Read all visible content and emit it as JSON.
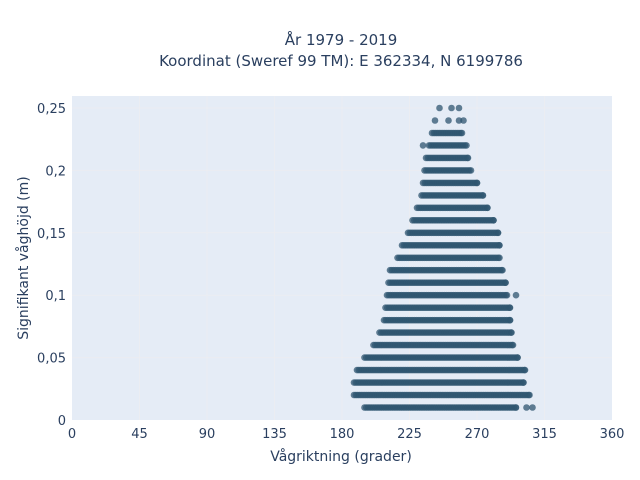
{
  "chart_data": {
    "type": "scatter",
    "title_line1": "År 1979 - 2019",
    "title_line2": "Koordinat (Sweref 99 TM): E 362334, N 6199786",
    "xlabel": "Vågriktning (grader)",
    "ylabel": "Signifikant våghöjd (m)",
    "xlim": [
      0,
      360
    ],
    "ylim": [
      0,
      0.26
    ],
    "x_ticks": [
      0,
      45,
      90,
      135,
      180,
      225,
      270,
      315,
      360
    ],
    "x_tick_labels": [
      "0",
      "45",
      "90",
      "135",
      "180",
      "225",
      "270",
      "315",
      "360"
    ],
    "y_ticks": [
      0,
      0.05,
      0.1,
      0.15,
      0.2,
      0.25
    ],
    "y_tick_labels": [
      "0",
      "0,05",
      "0,1",
      "0,15",
      "0,2",
      "0,25"
    ],
    "grid": true,
    "marker_color": "#2f5670",
    "rows": [
      {
        "y": 0.01,
        "x_min": 195,
        "x_max": 296,
        "extra_x": [
          303,
          307
        ]
      },
      {
        "y": 0.02,
        "x_min": 188,
        "x_max": 305,
        "extra_x": []
      },
      {
        "y": 0.03,
        "x_min": 188,
        "x_max": 301,
        "extra_x": []
      },
      {
        "y": 0.04,
        "x_min": 190,
        "x_max": 302,
        "extra_x": []
      },
      {
        "y": 0.05,
        "x_min": 195,
        "x_max": 297,
        "extra_x": []
      },
      {
        "y": 0.06,
        "x_min": 201,
        "x_max": 294,
        "extra_x": []
      },
      {
        "y": 0.07,
        "x_min": 205,
        "x_max": 293,
        "extra_x": []
      },
      {
        "y": 0.08,
        "x_min": 208,
        "x_max": 292,
        "extra_x": []
      },
      {
        "y": 0.09,
        "x_min": 209,
        "x_max": 292,
        "extra_x": []
      },
      {
        "y": 0.1,
        "x_min": 210,
        "x_max": 290,
        "extra_x": [
          296
        ]
      },
      {
        "y": 0.11,
        "x_min": 211,
        "x_max": 289,
        "extra_x": []
      },
      {
        "y": 0.12,
        "x_min": 212,
        "x_max": 287,
        "extra_x": []
      },
      {
        "y": 0.13,
        "x_min": 217,
        "x_max": 285,
        "extra_x": []
      },
      {
        "y": 0.14,
        "x_min": 220,
        "x_max": 285,
        "extra_x": []
      },
      {
        "y": 0.15,
        "x_min": 224,
        "x_max": 284,
        "extra_x": []
      },
      {
        "y": 0.16,
        "x_min": 227,
        "x_max": 281,
        "extra_x": []
      },
      {
        "y": 0.17,
        "x_min": 230,
        "x_max": 277,
        "extra_x": []
      },
      {
        "y": 0.18,
        "x_min": 233,
        "x_max": 274,
        "extra_x": []
      },
      {
        "y": 0.19,
        "x_min": 234,
        "x_max": 270,
        "extra_x": []
      },
      {
        "y": 0.2,
        "x_min": 235,
        "x_max": 266,
        "extra_x": []
      },
      {
        "y": 0.21,
        "x_min": 236,
        "x_max": 264,
        "extra_x": []
      },
      {
        "y": 0.22,
        "x_min": 238,
        "x_max": 263,
        "extra_x": [
          234
        ]
      },
      {
        "y": 0.23,
        "x_min": 240,
        "x_max": 260,
        "extra_x": []
      },
      {
        "y": 0.24,
        "x_min": 0,
        "x_max": -1,
        "extra_x": [
          242,
          251,
          258,
          261
        ]
      },
      {
        "y": 0.25,
        "x_min": 0,
        "x_max": -1,
        "extra_x": [
          245,
          253,
          258
        ]
      }
    ]
  }
}
